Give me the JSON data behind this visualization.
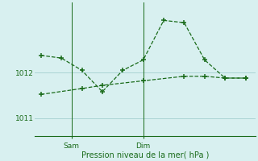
{
  "xlabel": "Pression niveau de la mer( hPa )",
  "bg_color": "#d8f0f0",
  "line_color": "#1a6b1a",
  "grid_color": "#aad4d4",
  "line1_x": [
    0,
    1,
    2,
    3,
    4,
    5,
    6,
    7,
    8,
    9,
    10
  ],
  "line1_y": [
    1012.38,
    1012.32,
    1012.05,
    1011.58,
    1012.05,
    1012.28,
    1013.15,
    1013.1,
    1012.28,
    1011.88,
    1011.88
  ],
  "line2_x": [
    0,
    2,
    3,
    5,
    7,
    8,
    9,
    10
  ],
  "line2_y": [
    1011.52,
    1011.65,
    1011.72,
    1011.82,
    1011.92,
    1011.92,
    1011.88,
    1011.88
  ],
  "yticks": [
    1011,
    1012
  ],
  "xtick_positions": [
    1.5,
    5.0
  ],
  "xtick_labels": [
    "Sam",
    "Dim"
  ],
  "vline_positions": [
    1.5,
    5.0
  ],
  "ylim": [
    1010.6,
    1013.55
  ],
  "xlim": [
    -0.3,
    10.5
  ]
}
